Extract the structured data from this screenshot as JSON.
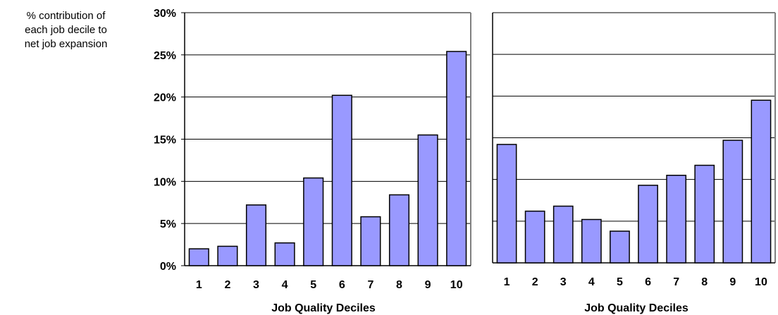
{
  "ylabel_lines": [
    "% contribution of",
    "each job decile to",
    "net job expansion"
  ],
  "bar_color": "#9999ff",
  "chart_data": [
    {
      "type": "bar",
      "categories": [
        "1",
        "2",
        "3",
        "4",
        "5",
        "6",
        "7",
        "8",
        "9",
        "10"
      ],
      "values": [
        2.0,
        2.3,
        7.2,
        2.7,
        10.4,
        20.2,
        5.8,
        8.4,
        15.5,
        25.4
      ],
      "xlabel": "Job Quality Deciles",
      "ylabel": "% contribution of each job decile to net job expansion",
      "ylim": [
        0,
        30
      ],
      "yticks": [
        0,
        5,
        10,
        15,
        20,
        25,
        30
      ],
      "ytick_labels": [
        "0%",
        "5%",
        "10%",
        "15%",
        "20%",
        "25%",
        "30%"
      ],
      "grid": true
    },
    {
      "type": "bar",
      "categories": [
        "1",
        "2",
        "3",
        "4",
        "5",
        "6",
        "7",
        "8",
        "9",
        "10"
      ],
      "values": [
        14.2,
        6.2,
        6.8,
        5.2,
        3.8,
        9.3,
        10.5,
        11.7,
        14.7,
        19.5
      ],
      "xlabel": "Job Quality Deciles",
      "ylim": [
        0,
        30
      ],
      "yticks": [
        0,
        5,
        10,
        15,
        20,
        25,
        30
      ],
      "ytick_labels": [],
      "grid": true
    }
  ]
}
